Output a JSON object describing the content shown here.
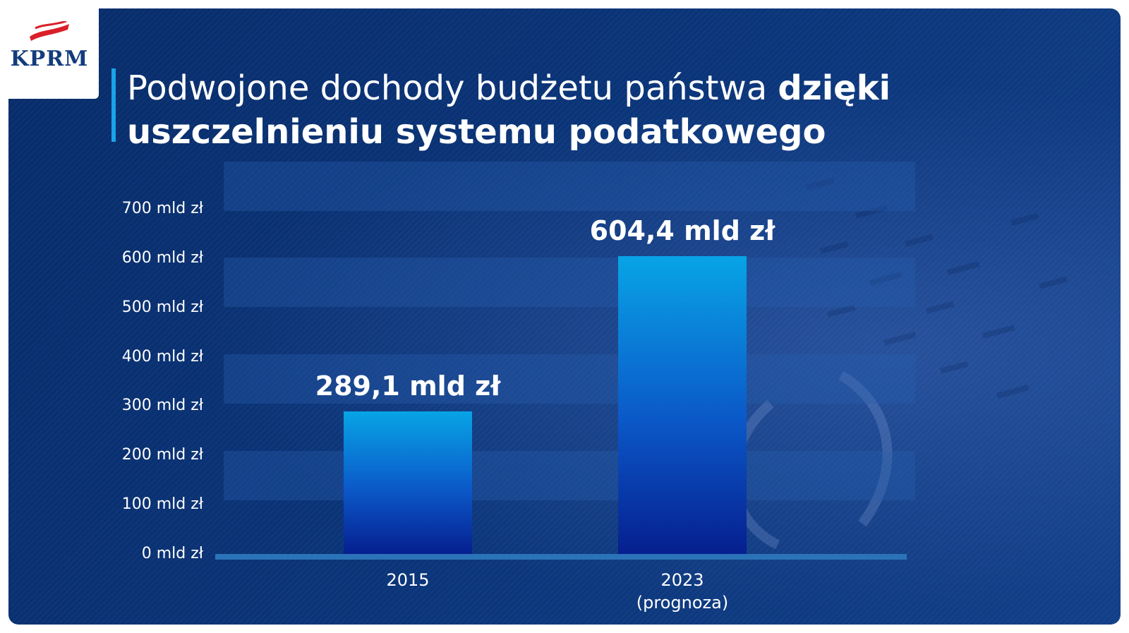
{
  "logo": {
    "text": "KPRM"
  },
  "title": {
    "regular": "Podwojone dochody budżetu państwa ",
    "bold": "dzięki uszczelnieniu systemu podatkowego"
  },
  "colors": {
    "background": "#0a3478",
    "bar_top": "#08a4e6",
    "bar_bottom": "#061f8f",
    "title_accent": "#1aa3e8",
    "logo_text": "#133c7d",
    "logo_flag_red": "#d9202a"
  },
  "chart_data": {
    "type": "bar",
    "title": "Podwojone dochody budżetu państwa dzięki uszczelnieniu systemu podatkowego",
    "categories": [
      "2015",
      "2023 (prognoza)"
    ],
    "category_lines": [
      [
        "2015"
      ],
      [
        "2023",
        "(prognoza)"
      ]
    ],
    "values": [
      289.1,
      604.4
    ],
    "value_labels": [
      "289,1 mld zł",
      "604,4 mld zł"
    ],
    "yticks": [
      0,
      100,
      200,
      300,
      400,
      500,
      600,
      700
    ],
    "ytick_labels": [
      "0 mld zł",
      "100 mld zł",
      "200 mld zł",
      "300 mld zł",
      "400 mld zł",
      "500 mld zł",
      "600 mld zł",
      "700 mld zł"
    ],
    "ylim": [
      0,
      700
    ],
    "xlabel": "",
    "ylabel": "",
    "grid": "alternating horizontal bands",
    "legend": "none"
  }
}
